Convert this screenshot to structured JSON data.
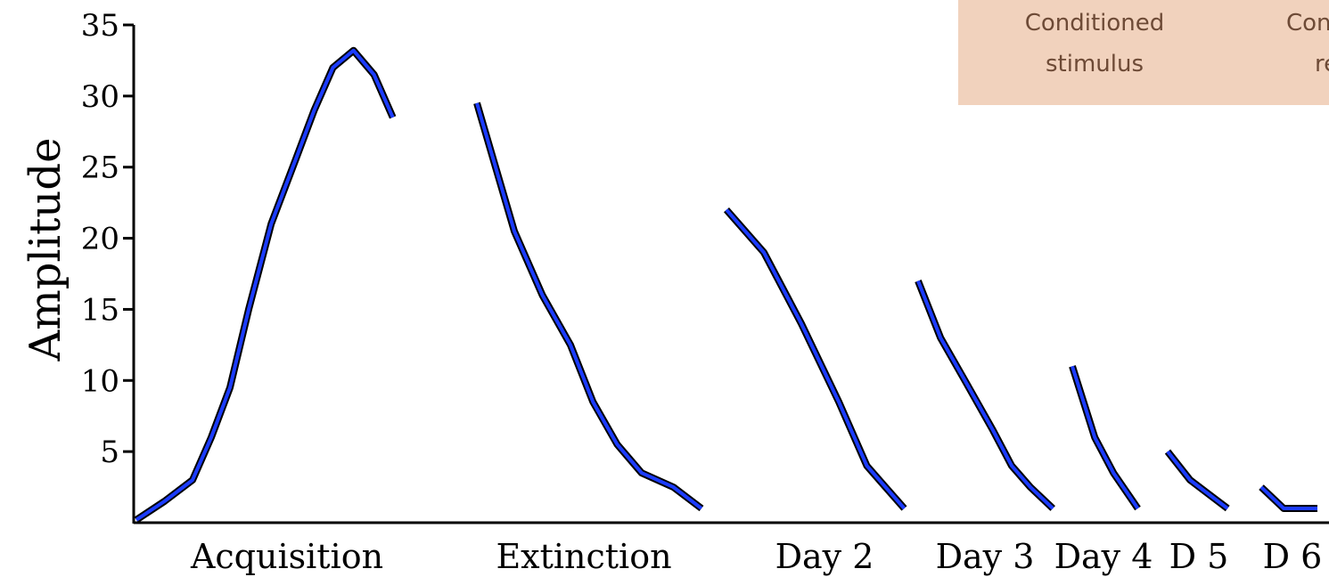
{
  "chart_data": {
    "type": "line",
    "title": "",
    "ylabel": "Amplitude",
    "xlabel": "",
    "ylim": [
      0,
      35
    ],
    "yticks": [
      5,
      10,
      15,
      20,
      25,
      30,
      35
    ],
    "grid": false,
    "line_color": "#1c3cff",
    "legend_bg": "#f1d2bd",
    "legend_text_color": "#6d4a36",
    "legend": {
      "items": [
        {
          "line1": "Conditioned",
          "line2": "stimulus"
        },
        {
          "line1": "Con",
          "line2": "re"
        }
      ]
    },
    "sessions": [
      {
        "name": "Acquisition",
        "points": [
          [
            0,
            0.2
          ],
          [
            0.15,
            1.5
          ],
          [
            0.3,
            3
          ],
          [
            0.4,
            6
          ],
          [
            0.5,
            9.5
          ],
          [
            0.6,
            15
          ],
          [
            0.72,
            21
          ],
          [
            0.85,
            25.5
          ],
          [
            0.95,
            29
          ],
          [
            1.05,
            32
          ],
          [
            1.16,
            33.2
          ],
          [
            1.27,
            31.5
          ],
          [
            1.37,
            28.5
          ]
        ]
      },
      {
        "name": "Extinction",
        "points": [
          [
            0,
            29.5
          ],
          [
            0.1,
            25
          ],
          [
            0.2,
            20.5
          ],
          [
            0.35,
            16
          ],
          [
            0.5,
            12.5
          ],
          [
            0.62,
            8.5
          ],
          [
            0.75,
            5.5
          ],
          [
            0.88,
            3.5
          ],
          [
            1.05,
            2.5
          ],
          [
            1.2,
            1
          ]
        ]
      },
      {
        "name": "Day 2",
        "points": [
          [
            0,
            22
          ],
          [
            0.2,
            19
          ],
          [
            0.4,
            14
          ],
          [
            0.6,
            8.5
          ],
          [
            0.75,
            4
          ],
          [
            0.85,
            2.5
          ],
          [
            0.95,
            1
          ]
        ]
      },
      {
        "name": "Day 3",
        "points": [
          [
            0,
            17
          ],
          [
            0.12,
            13
          ],
          [
            0.25,
            10
          ],
          [
            0.4,
            6.5
          ],
          [
            0.5,
            4
          ],
          [
            0.6,
            2.5
          ],
          [
            0.72,
            1
          ]
        ]
      },
      {
        "name": "Day 4",
        "points": [
          [
            0,
            11
          ],
          [
            0.12,
            6
          ],
          [
            0.22,
            3.5
          ],
          [
            0.35,
            1
          ]
        ]
      },
      {
        "name": "D 5",
        "points": [
          [
            0,
            5
          ],
          [
            0.12,
            3
          ],
          [
            0.22,
            2
          ],
          [
            0.32,
            1
          ]
        ]
      },
      {
        "name": "D 6",
        "points": [
          [
            0,
            2.5
          ],
          [
            0.12,
            1
          ],
          [
            0.3,
            1
          ]
        ]
      }
    ]
  }
}
